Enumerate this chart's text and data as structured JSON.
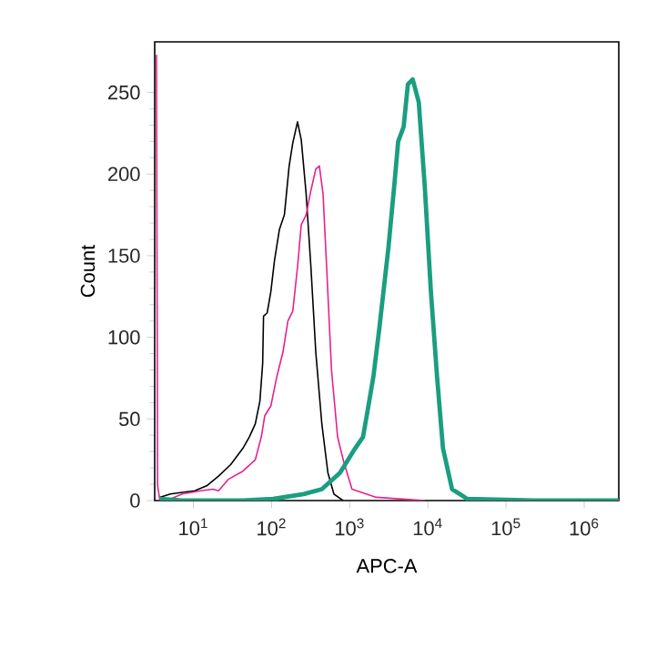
{
  "chart_data": {
    "type": "line",
    "xlabel": "APC-A",
    "ylabel": "Count",
    "log": "x",
    "xlim": [
      3.2,
      2770000
    ],
    "ylim": [
      0,
      281
    ],
    "xticks": [
      {
        "value": 10,
        "label": "10$^{1}$"
      },
      {
        "value": 100,
        "label": "10$^{2}$"
      },
      {
        "value": 1000,
        "label": "10$^{3}$"
      },
      {
        "value": 10000,
        "label": "10$^{4}$"
      },
      {
        "value": 100000,
        "label": "10$^{5}$"
      },
      {
        "value": 1000000,
        "label": "10$^{6}$"
      }
    ],
    "yticks": [
      0,
      50,
      100,
      150,
      200,
      250
    ],
    "series": [
      {
        "color": "#000000",
        "x": [
          3.7,
          5.1,
          7.2,
          10.4,
          14.8,
          21,
          30,
          43,
          52,
          62,
          71,
          77,
          79,
          88,
          98,
          109,
          126,
          146,
          168,
          187,
          215,
          240,
          277,
          319,
          368,
          440,
          526,
          628,
          822
        ],
        "values": [
          2,
          4,
          5,
          6,
          9,
          15,
          22,
          32,
          39,
          47,
          61,
          84,
          113,
          115,
          128,
          147,
          166,
          175,
          205,
          219,
          232,
          221,
          188,
          143,
          91,
          47,
          17,
          4,
          0
        ]
      },
      {
        "color": "#e8208c",
        "x": [
          3.37,
          3.49,
          3.7,
          5.1,
          7.2,
          12.4,
          17.7,
          21,
          28,
          43,
          62,
          74,
          82,
          98,
          117,
          140,
          162,
          187,
          215,
          240,
          277,
          319,
          368,
          409,
          456,
          507,
          585,
          700,
          836,
          1070,
          2190,
          9140
        ],
        "values": [
          273,
          9,
          1,
          1,
          4,
          6,
          7,
          6,
          13,
          18,
          25,
          39,
          52,
          58,
          76,
          91,
          110,
          116,
          143,
          169,
          175,
          190,
          203,
          205,
          188,
          143,
          80,
          39,
          24,
          7,
          2,
          0
        ]
      },
      {
        "color": "#1a9e80",
        "x": [
          3.7,
          7.2,
          43,
          105,
          258,
          440,
          751,
          1175,
          1480,
          1680,
          2010,
          2400,
          3130,
          3750,
          4170,
          4900,
          5550,
          6400,
          7650,
          9140,
          10900,
          13100,
          15600,
          20400,
          31900,
          227000,
          2770000
        ],
        "values": [
          1,
          0,
          0,
          1,
          4,
          7,
          17,
          32,
          39,
          54,
          76,
          106,
          155,
          195,
          220,
          229,
          255,
          258,
          244,
          192,
          129,
          76,
          32,
          7,
          1,
          0,
          0
        ]
      }
    ]
  }
}
